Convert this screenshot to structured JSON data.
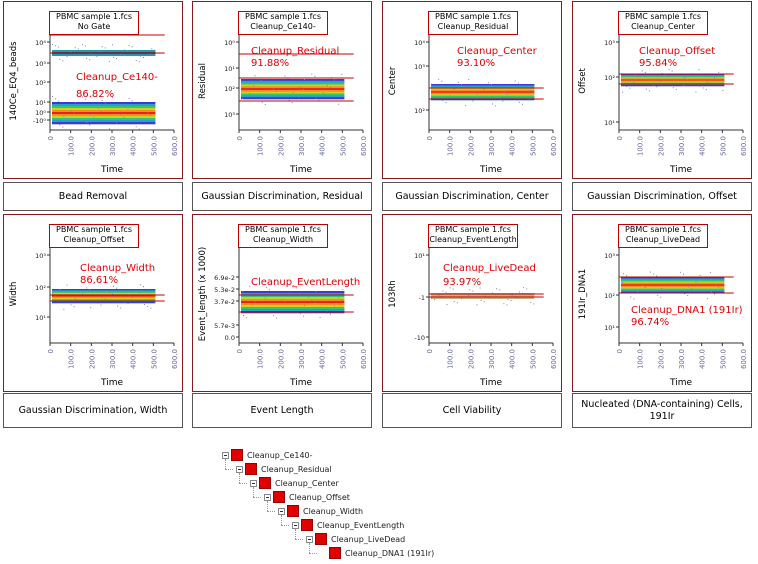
{
  "colors": {
    "panel_border": "#8b1a1a",
    "gate_line": "#c00000",
    "gate_label": "#e00000",
    "axis_tick": "#6a6a9a",
    "events_main": "#1aa0a0"
  },
  "chart_data": [
    {
      "type": "scatter",
      "panel_title": [
        "PBMC sample 1.fcs",
        "No Gate"
      ],
      "caption": "Bead Removal",
      "ylabel": "140Ce_EQ4_beads",
      "xlabel": "Time",
      "x_ticks": [
        "0",
        "100.0",
        "200.0",
        "300.0",
        "400.0",
        "500.0",
        "600.0"
      ],
      "y_ticks": [
        "10⁴",
        "10³",
        "10²",
        "10¹",
        "10⁰",
        "-10⁰"
      ],
      "gate_name": "Cleanup_Ce140-",
      "gate_percent": "86.82%",
      "xlim": [
        0,
        600
      ]
    },
    {
      "type": "scatter",
      "panel_title": [
        "PBMC sample 1.fcs",
        "Cleanup_Ce140-"
      ],
      "caption": "Gaussian Discrimination, Residual",
      "ylabel": "Residual",
      "xlabel": "Time",
      "x_ticks": [
        "0",
        "100.0",
        "200.0",
        "300.0",
        "400.0",
        "500.0",
        "600.0"
      ],
      "y_ticks": [
        "10⁰",
        "10¹",
        "10²",
        "10³"
      ],
      "gate_name": "Cleanup_Residual",
      "gate_percent": "91.88%",
      "xlim": [
        0,
        600
      ]
    },
    {
      "type": "scatter",
      "panel_title": [
        "PBMC sample 1.fcs",
        "Cleanup_Residual"
      ],
      "caption": "Gaussian Discrimination, Center",
      "ylabel": "Center",
      "xlabel": "Time",
      "x_ticks": [
        "0",
        "100.0",
        "200.0",
        "300.0",
        "400.0",
        "500.0",
        "600.0"
      ],
      "y_ticks": [
        "10⁴",
        "10³",
        "10²"
      ],
      "gate_name": "Cleanup_Center",
      "gate_percent": "93.10%",
      "xlim": [
        0,
        600
      ]
    },
    {
      "type": "scatter",
      "panel_title": [
        "PBMC sample 1.fcs",
        "Cleanup_Center"
      ],
      "caption": "Gaussian Discrimination, Offset",
      "ylabel": "Offset",
      "xlabel": "Time",
      "x_ticks": [
        "0",
        "100.0",
        "200.0",
        "300.0",
        "400.0",
        "500.0",
        "600.0"
      ],
      "y_ticks": [
        "10³",
        "10²",
        "10¹"
      ],
      "gate_name": "Cleanup_Offset",
      "gate_percent": "95.84%",
      "xlim": [
        0,
        600
      ]
    },
    {
      "type": "scatter",
      "panel_title": [
        "PBMC sample 1.fcs",
        "Cleanup_Offset"
      ],
      "caption": "Gaussian Discrimination, Width",
      "ylabel": "Width",
      "xlabel": "Time",
      "x_ticks": [
        "0",
        "100.0",
        "200.0",
        "300.0",
        "400.0",
        "500.0",
        "600.0"
      ],
      "y_ticks": [
        "10³",
        "10²",
        "10¹"
      ],
      "gate_name": "Cleanup_Width",
      "gate_percent": "86.61%",
      "xlim": [
        0,
        600
      ]
    },
    {
      "type": "scatter",
      "panel_title": [
        "PBMC sample 1.fcs",
        "Cleanup_Width"
      ],
      "caption": "Event Length",
      "ylabel": "Event_length (x 1000)",
      "xlabel": "Time",
      "x_ticks": [
        "0",
        "100.0",
        "200.0",
        "300.0",
        "400.0",
        "500.0",
        "600.0"
      ],
      "y_ticks": [
        "6.9e-2",
        "5.3e-2",
        "3.7e-2",
        "5.7e-3",
        "0.0"
      ],
      "gate_name": "Cleanup_EventLength",
      "gate_percent": "",
      "xlim": [
        0,
        600
      ]
    },
    {
      "type": "scatter",
      "panel_title": [
        "PBMC sample 1.fcs",
        "Cleanup_EventLength"
      ],
      "caption": "Cell Viability",
      "ylabel": "103Rh",
      "xlabel": "Time",
      "x_ticks": [
        "0",
        "100.0",
        "200.0",
        "300.0",
        "400.0",
        "500.0",
        "600.0"
      ],
      "y_ticks": [
        "10¹",
        "-1",
        "-10"
      ],
      "gate_name": "Cleanup_LiveDead",
      "gate_percent": "93.97%",
      "xlim": [
        0,
        600
      ]
    },
    {
      "type": "scatter",
      "panel_title": [
        "PBMC sample 1.fcs",
        "Cleanup_LiveDead"
      ],
      "caption": "Nucleated (DNA-containing) Cells, 191Ir",
      "ylabel": "191Ir_DNA1",
      "xlabel": "Time",
      "x_ticks": [
        "0",
        "100.0",
        "200.0",
        "300.0",
        "400.0",
        "500.0",
        "600.0"
      ],
      "y_ticks": [
        "10³",
        "10²",
        "10¹"
      ],
      "gate_name": "Cleanup_DNA1 (191Ir)",
      "gate_percent": "96.74%",
      "xlim": [
        0,
        600
      ]
    }
  ],
  "gate_tree": [
    "Cleanup_Ce140-",
    "Cleanup_Residual",
    "Cleanup_Center",
    "Cleanup_Offset",
    "Cleanup_Width",
    "Cleanup_EventLength",
    "Cleanup_LiveDead",
    "Cleanup_DNA1 (191Ir)"
  ]
}
